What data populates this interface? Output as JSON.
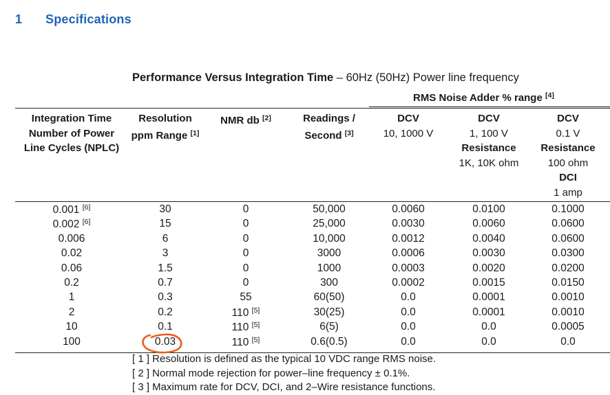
{
  "header": {
    "section_number": "1",
    "section_title": "Specifications"
  },
  "table": {
    "title_bold": "Performance Versus Integration Time",
    "title_rest": " – 60Hz (50Hz) Power line frequency",
    "group_header": {
      "text": "RMS Noise Adder % range",
      "note": "[4]"
    },
    "columns": [
      {
        "lines": [
          "Integration Time",
          "Number of Power",
          "Line Cycles (NPLC)"
        ],
        "note": ""
      },
      {
        "lines": [
          "Resolution",
          "ppm Range"
        ],
        "note": "[1]"
      },
      {
        "lines": [
          "NMR db"
        ],
        "note": "[2]"
      },
      {
        "lines": [
          "Readings /",
          "Second"
        ],
        "note": "[3]"
      },
      {
        "title": "DCV",
        "lines": [
          "10, 1000 V"
        ]
      },
      {
        "title": "DCV",
        "lines": [
          "1, 100 V"
        ],
        "sub_title": "Resistance",
        "sub_lines": [
          "1K, 10K ohm"
        ]
      },
      {
        "title": "DCV",
        "lines": [
          "0.1 V"
        ],
        "sub_title": "Resistance",
        "sub_lines": [
          "100 ohm"
        ],
        "sub_title2": "DCI",
        "sub_lines2": [
          "1 amp"
        ]
      }
    ],
    "rows": [
      {
        "nplc": "0.001",
        "nplc_note": "[6]",
        "res": "30",
        "nmr": "0",
        "nmr_note": "",
        "rps": "50,000",
        "c1": "0.0060",
        "c2": "0.0100",
        "c3": "0.1000"
      },
      {
        "nplc": "0.002",
        "nplc_note": "[6]",
        "res": "15",
        "nmr": "0",
        "nmr_note": "",
        "rps": "25,000",
        "c1": "0.0030",
        "c2": "0.0060",
        "c3": "0.0600"
      },
      {
        "nplc": "0.006",
        "nplc_note": "",
        "res": "6",
        "nmr": "0",
        "nmr_note": "",
        "rps": "10,000",
        "c1": "0.0012",
        "c2": "0.0040",
        "c3": "0.0600"
      },
      {
        "nplc": "0.02",
        "nplc_note": "",
        "res": "3",
        "nmr": "0",
        "nmr_note": "",
        "rps": "3000",
        "c1": "0.0006",
        "c2": "0.0030",
        "c3": "0.0300"
      },
      {
        "nplc": "0.06",
        "nplc_note": "",
        "res": "1.5",
        "nmr": "0",
        "nmr_note": "",
        "rps": "1000",
        "c1": "0.0003",
        "c2": "0.0020",
        "c3": "0.0200"
      },
      {
        "nplc": "0.2",
        "nplc_note": "",
        "res": "0.7",
        "nmr": "0",
        "nmr_note": "",
        "rps": "300",
        "c1": "0.0002",
        "c2": "0.0015",
        "c3": "0.0150"
      },
      {
        "nplc": "1",
        "nplc_note": "",
        "res": "0.3",
        "nmr": "55",
        "nmr_note": "",
        "rps": "60(50)",
        "c1": "0.0",
        "c2": "0.0001",
        "c3": "0.0010"
      },
      {
        "nplc": "2",
        "nplc_note": "",
        "res": "0.2",
        "nmr": "110",
        "nmr_note": "[5]",
        "rps": "30(25)",
        "c1": "0.0",
        "c2": "0.0001",
        "c3": "0.0010"
      },
      {
        "nplc": "10",
        "nplc_note": "",
        "res": "0.1",
        "nmr": "110",
        "nmr_note": "[5]",
        "rps": "6(5)",
        "c1": "0.0",
        "c2": "0.0",
        "c3": "0.0005"
      },
      {
        "nplc": "100",
        "nplc_note": "",
        "res": "0.03",
        "nmr": "110",
        "nmr_note": "[5]",
        "rps": "0.6(0.5)",
        "c1": "0.0",
        "c2": "0.0",
        "c3": "0.0"
      }
    ],
    "footnotes": [
      "[ 1 ] Resolution is defined as the typical 10 VDC range RMS noise.",
      "[ 2 ] Normal mode rejection for power–line frequency ± 0.1%.",
      "[ 3 ] Maximum rate for DCV, DCI, and 2–Wire resistance functions."
    ]
  },
  "annotation": {
    "marks": "0.03",
    "color": "#ee5a1f"
  }
}
